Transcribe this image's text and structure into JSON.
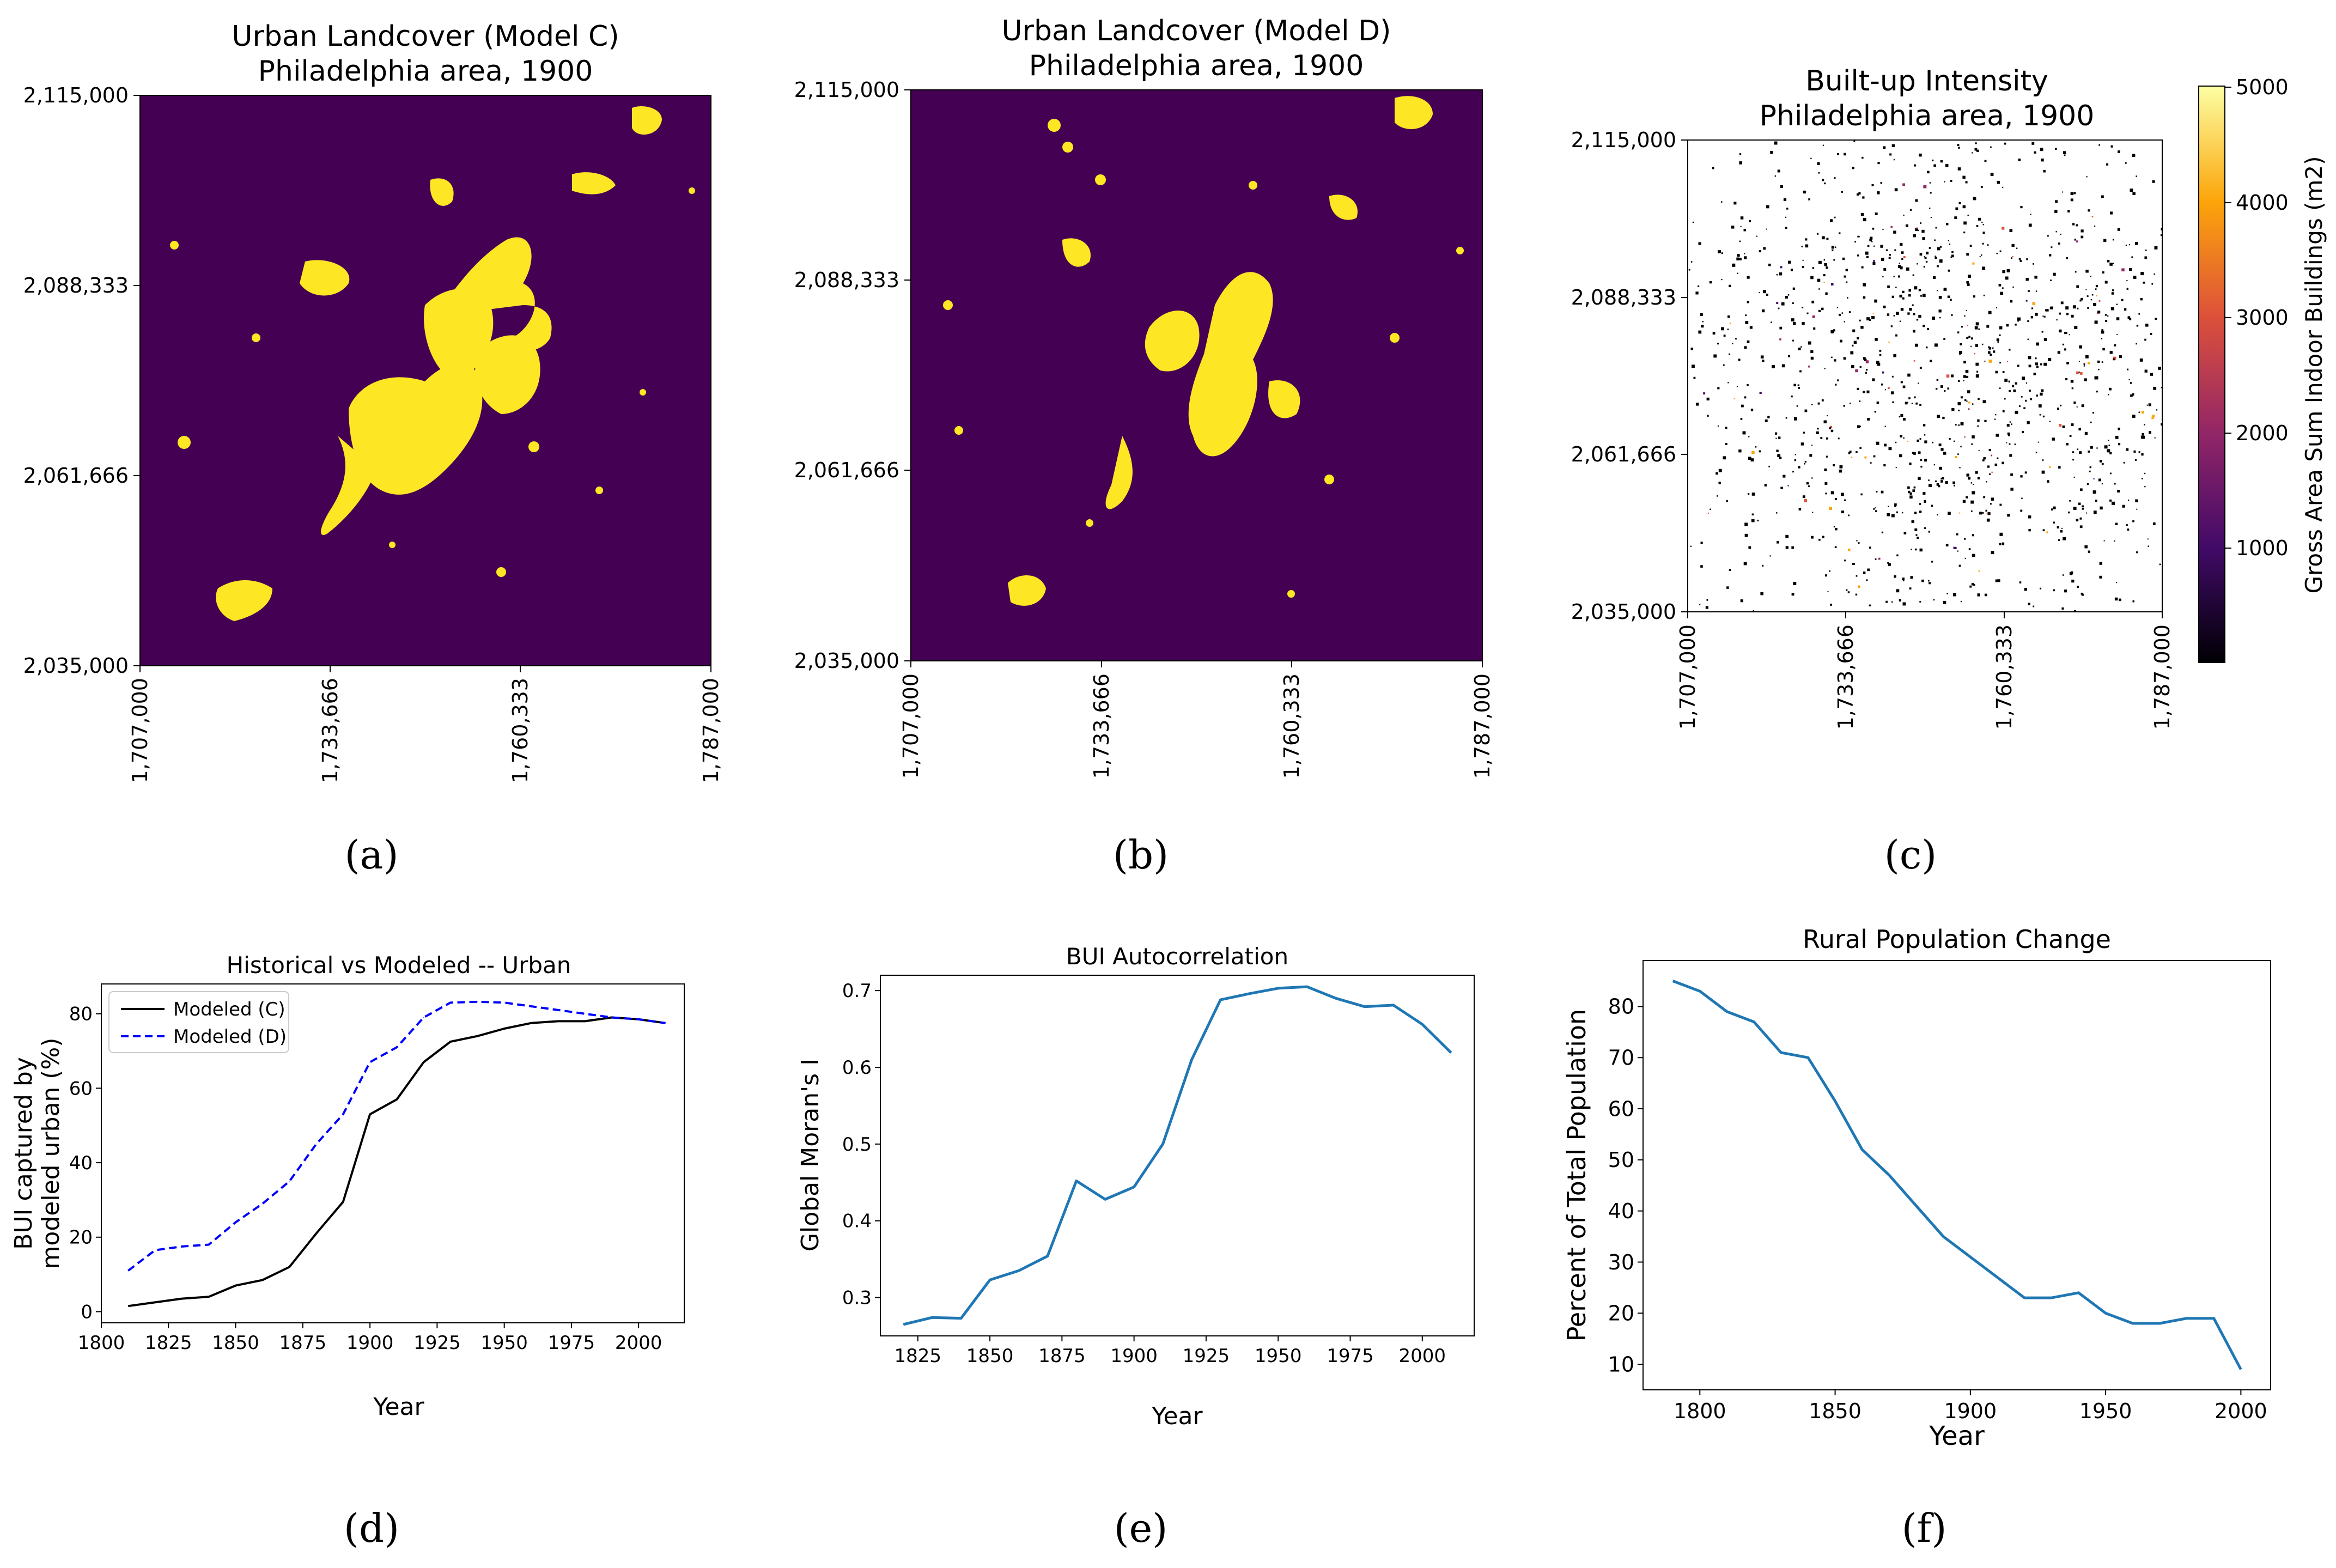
{
  "colors": {
    "viridis_bg": "#440154",
    "viridis_urban": "#fde725",
    "viridis_mid": "#21918c",
    "line_blue": "#1f77b4",
    "modeled_c": "#000000",
    "modeled_d": "#0000ff",
    "axis": "#000000",
    "inferno": [
      "#000004",
      "#420a68",
      "#932667",
      "#dd513a",
      "#fca50a",
      "#fcffa4"
    ]
  },
  "chart_data": [
    {
      "id": "a",
      "type": "heatmap",
      "panel_label": "(a)",
      "title": [
        "Urban Landcover (Model C)",
        "Philadelphia area, 1900"
      ],
      "x_ticks": [
        "1,707,000",
        "1,733,666",
        "1,760,333",
        "1,787,000"
      ],
      "y_ticks": [
        "2,115,000",
        "2,088,333",
        "2,061,666",
        "2,035,000"
      ],
      "xlim": [
        1707000,
        1787000
      ],
      "ylim": [
        2035000,
        2115000
      ],
      "classes": [
        "non-urban",
        "urban"
      ]
    },
    {
      "id": "b",
      "type": "heatmap",
      "panel_label": "(b)",
      "title": [
        "Urban Landcover (Model D)",
        "Philadelphia area, 1900"
      ],
      "x_ticks": [
        "1,707,000",
        "1,733,666",
        "1,760,333",
        "1,787,000"
      ],
      "y_ticks": [
        "2,115,000",
        "2,088,333",
        "2,061,666",
        "2,035,000"
      ],
      "xlim": [
        1707000,
        1787000
      ],
      "ylim": [
        2035000,
        2115000
      ],
      "classes": [
        "non-urban",
        "urban"
      ]
    },
    {
      "id": "c",
      "type": "heatmap",
      "panel_label": "(c)",
      "title": [
        "Built-up Intensity",
        "Philadelphia area, 1900"
      ],
      "x_ticks": [
        "1,707,000",
        "1,733,666",
        "1,760,333",
        "1,787,000"
      ],
      "y_ticks": [
        "2,115,000",
        "2,088,333",
        "2,061,666",
        "2,035,000"
      ],
      "xlim": [
        1707000,
        1787000
      ],
      "ylim": [
        2035000,
        2115000
      ],
      "colorbar": {
        "label": "Gross Area Sum Indoor Buildings (m2)",
        "ticks": [
          "5000",
          "4000",
          "3000",
          "2000",
          "1000"
        ],
        "range": [
          0,
          5000
        ]
      }
    },
    {
      "id": "d",
      "type": "line",
      "panel_label": "(d)",
      "title": "Historical vs Modeled -- Urban",
      "xlabel": "Year",
      "ylabel": [
        "BUI captured by",
        "modeled urban (%)"
      ],
      "xlim": [
        1800,
        2017
      ],
      "ylim": [
        -3,
        88
      ],
      "x_ticks": [
        "1800",
        "1825",
        "1850",
        "1875",
        "1900",
        "1925",
        "1950",
        "1975",
        "2000"
      ],
      "y_ticks": [
        "0",
        "20",
        "40",
        "60",
        "80"
      ],
      "x": [
        1810,
        1820,
        1830,
        1840,
        1850,
        1860,
        1870,
        1880,
        1890,
        1900,
        1910,
        1920,
        1930,
        1940,
        1950,
        1960,
        1970,
        1980,
        1990,
        2000,
        2010
      ],
      "series": [
        {
          "name": "Modeled (C)",
          "style": "solid",
          "values": [
            1.5,
            2.5,
            3.5,
            4,
            7,
            8.5,
            12,
            21,
            29.5,
            53,
            57,
            67,
            72.5,
            74,
            76,
            77.5,
            78,
            78,
            79,
            78.5,
            77.5
          ]
        },
        {
          "name": "Modeled (D)",
          "style": "dashed",
          "values": [
            11,
            16.5,
            17.5,
            18,
            24,
            29,
            35,
            45,
            53,
            67,
            71,
            79,
            83,
            83.2,
            83,
            82,
            81,
            80,
            79,
            78.5,
            77.5
          ]
        }
      ],
      "legend": "top-left"
    },
    {
      "id": "e",
      "type": "line",
      "panel_label": "(e)",
      "title": "BUI Autocorrelation",
      "xlabel": "Year",
      "ylabel": "Global Moran's I",
      "xlim": [
        1812,
        2018
      ],
      "ylim": [
        0.25,
        0.72
      ],
      "x_ticks": [
        "1825",
        "1850",
        "1875",
        "1900",
        "1925",
        "1950",
        "1975",
        "2000"
      ],
      "y_ticks": [
        "0.3",
        "0.4",
        "0.5",
        "0.6",
        "0.7"
      ],
      "x": [
        1820,
        1830,
        1840,
        1850,
        1860,
        1870,
        1880,
        1890,
        1900,
        1910,
        1920,
        1930,
        1940,
        1950,
        1960,
        1970,
        1980,
        1990,
        2000,
        2010
      ],
      "series": [
        {
          "name": "Global Moran's I",
          "values": [
            0.265,
            0.274,
            0.273,
            0.323,
            0.335,
            0.354,
            0.452,
            0.428,
            0.444,
            0.5,
            0.61,
            0.688,
            0.696,
            0.703,
            0.705,
            0.69,
            0.679,
            0.681,
            0.656,
            0.619
          ]
        }
      ]
    },
    {
      "id": "f",
      "type": "line",
      "panel_label": "(f)",
      "title": "Rural Population Change",
      "xlabel": "Year",
      "ylabel": "Percent of Total Population",
      "xlim": [
        1779,
        2011
      ],
      "ylim": [
        5,
        89
      ],
      "x_ticks": [
        "1800",
        "1850",
        "1900",
        "1950",
        "2000"
      ],
      "y_ticks": [
        "10",
        "20",
        "30",
        "40",
        "50",
        "60",
        "70",
        "80"
      ],
      "x": [
        1790,
        1800,
        1810,
        1820,
        1830,
        1840,
        1850,
        1860,
        1870,
        1880,
        1890,
        1900,
        1910,
        1920,
        1930,
        1940,
        1950,
        1960,
        1970,
        1980,
        1990,
        2000
      ],
      "series": [
        {
          "name": "Rural population (%)",
          "values": [
            85,
            83,
            79,
            77,
            71,
            70,
            61.5,
            52,
            47,
            41,
            35,
            31,
            27,
            23,
            23,
            24,
            20,
            18,
            18,
            19,
            19,
            9
          ]
        }
      ]
    }
  ]
}
